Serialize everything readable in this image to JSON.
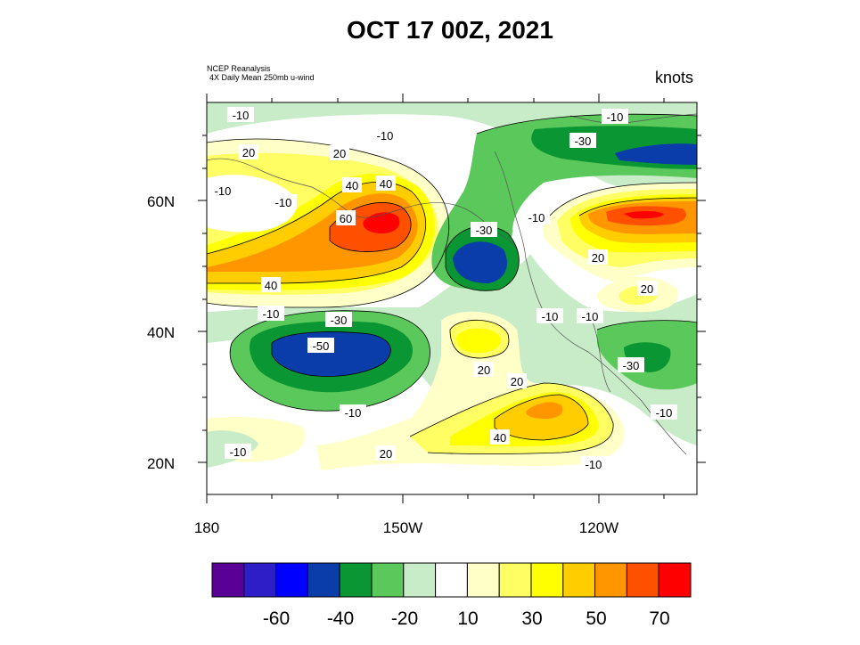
{
  "title": "OCT 17 00Z, 2021",
  "source": {
    "line1": "NCEP Reanalysis",
    "line2": "4X Daily Mean 250mb u-wind"
  },
  "units": "knots",
  "axes": {
    "y_ticks": [
      "60N",
      "40N",
      "20N"
    ],
    "x_ticks": [
      "180",
      "150W",
      "120W"
    ]
  },
  "colorbar": {
    "colors": [
      "#5a0096",
      "#2d1ec8",
      "#0000ff",
      "#0a3caa",
      "#0a9632",
      "#5ac85a",
      "#c8ebc8",
      "#ffffff",
      "#ffffc8",
      "#ffff64",
      "#ffff00",
      "#ffcd00",
      "#ff9600",
      "#ff5000",
      "#ff0000"
    ],
    "labels": [
      "-60",
      "-40",
      "-20",
      "10",
      "30",
      "50",
      "70"
    ]
  },
  "contour_labels": [
    "-10",
    "-10",
    "-10",
    "-10",
    "-10",
    "-10",
    "-10",
    "-10",
    "-10",
    "-10",
    "-10",
    "-10",
    "-10",
    "20",
    "20",
    "20",
    "20",
    "20",
    "20",
    "20",
    "40",
    "40",
    "40",
    "40",
    "60",
    "-30",
    "-30",
    "-30",
    "-30",
    "-50"
  ]
}
